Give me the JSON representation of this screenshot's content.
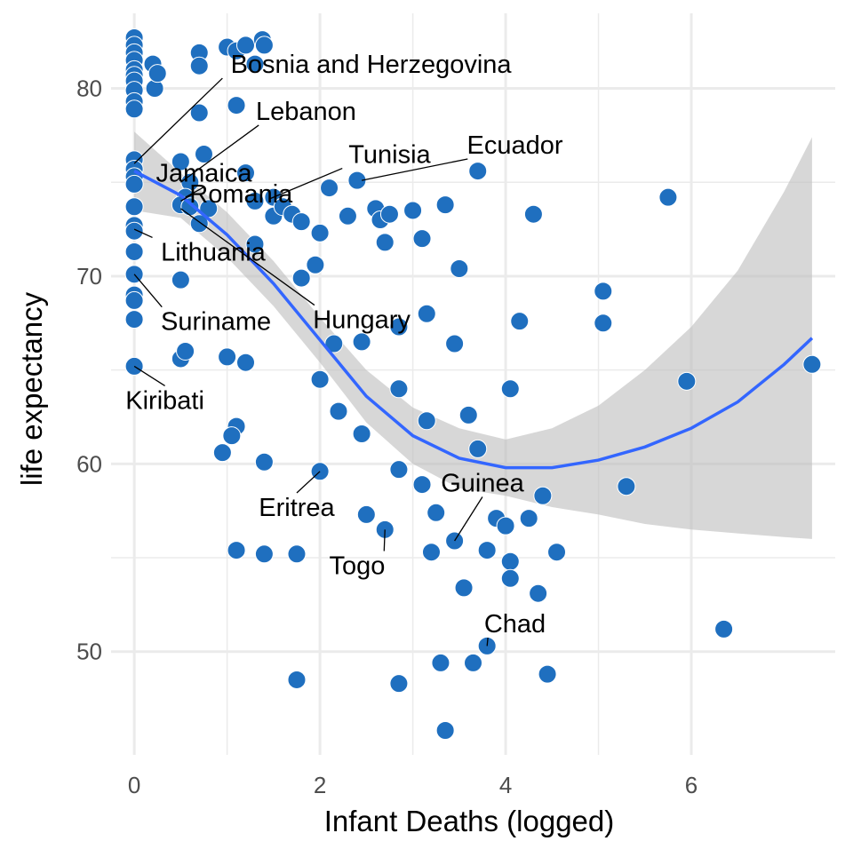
{
  "chart_data": {
    "type": "scatter",
    "title": "",
    "xlabel": "Infant Deaths (logged)",
    "ylabel": "life expectancy",
    "xlim": [
      -0.25,
      7.55
    ],
    "ylim": [
      44.5,
      84.0
    ],
    "x_ticks": [
      0,
      2,
      4,
      6
    ],
    "y_ticks": [
      50,
      60,
      70,
      80
    ],
    "grid": true,
    "legend": "none",
    "colors": {
      "point": "#1f6fbf",
      "point_stroke": "#ffffff",
      "smooth_line": "#3366ff",
      "ribbon": "#bdbdbd",
      "grid": "#ebebeb"
    },
    "points": [
      {
        "x": 0,
        "y": 82.7
      },
      {
        "x": 0,
        "y": 82.3
      },
      {
        "x": 0,
        "y": 81.9
      },
      {
        "x": 0,
        "y": 81.5
      },
      {
        "x": 0,
        "y": 81.0
      },
      {
        "x": 0,
        "y": 80.7
      },
      {
        "x": 0,
        "y": 80.4
      },
      {
        "x": 0,
        "y": 79.9
      },
      {
        "x": 0,
        "y": 79.3
      },
      {
        "x": 0,
        "y": 78.9
      },
      {
        "x": 0,
        "y": 76.2
      },
      {
        "x": 0,
        "y": 75.7
      },
      {
        "x": 0,
        "y": 75.3
      },
      {
        "x": 0,
        "y": 74.9
      },
      {
        "x": 0,
        "y": 73.7
      },
      {
        "x": 0,
        "y": 72.7
      },
      {
        "x": 0,
        "y": 72.4
      },
      {
        "x": 0,
        "y": 71.3
      },
      {
        "x": 0,
        "y": 70.1
      },
      {
        "x": 0,
        "y": 69.0
      },
      {
        "x": 0,
        "y": 68.7
      },
      {
        "x": 0,
        "y": 67.7
      },
      {
        "x": 0,
        "y": 65.2
      },
      {
        "x": 0.2,
        "y": 81.3
      },
      {
        "x": 0.22,
        "y": 80.0
      },
      {
        "x": 0.25,
        "y": 80.8
      },
      {
        "x": 0.7,
        "y": 81.9
      },
      {
        "x": 0.7,
        "y": 81.2
      },
      {
        "x": 0.7,
        "y": 78.7
      },
      {
        "x": 1.0,
        "y": 82.2
      },
      {
        "x": 1.1,
        "y": 82.0
      },
      {
        "x": 1.2,
        "y": 82.3
      },
      {
        "x": 1.3,
        "y": 81.3
      },
      {
        "x": 1.38,
        "y": 82.6
      },
      {
        "x": 1.4,
        "y": 82.3
      },
      {
        "x": 1.1,
        "y": 79.1
      },
      {
        "x": 0.75,
        "y": 76.5
      },
      {
        "x": 0.5,
        "y": 76.1
      },
      {
        "x": 0.6,
        "y": 75.0
      },
      {
        "x": 0.55,
        "y": 74.2
      },
      {
        "x": 0.5,
        "y": 73.8
      },
      {
        "x": 0.6,
        "y": 73.7
      },
      {
        "x": 0.8,
        "y": 73.6
      },
      {
        "x": 0.7,
        "y": 72.8
      },
      {
        "x": 1.2,
        "y": 75.5
      },
      {
        "x": 1.3,
        "y": 74.0
      },
      {
        "x": 1.5,
        "y": 74.2
      },
      {
        "x": 1.5,
        "y": 73.2
      },
      {
        "x": 1.6,
        "y": 73.7
      },
      {
        "x": 1.7,
        "y": 73.3
      },
      {
        "x": 1.8,
        "y": 72.9
      },
      {
        "x": 1.3,
        "y": 71.7
      },
      {
        "x": 2.0,
        "y": 72.3
      },
      {
        "x": 2.1,
        "y": 74.7
      },
      {
        "x": 2.4,
        "y": 75.1
      },
      {
        "x": 2.3,
        "y": 73.2
      },
      {
        "x": 2.6,
        "y": 73.6
      },
      {
        "x": 2.65,
        "y": 73.0
      },
      {
        "x": 2.75,
        "y": 73.3
      },
      {
        "x": 2.7,
        "y": 71.8
      },
      {
        "x": 3.0,
        "y": 73.5
      },
      {
        "x": 3.35,
        "y": 73.8
      },
      {
        "x": 3.1,
        "y": 72.0
      },
      {
        "x": 3.5,
        "y": 70.4
      },
      {
        "x": 3.7,
        "y": 75.6
      },
      {
        "x": 4.3,
        "y": 73.3
      },
      {
        "x": 1.8,
        "y": 69.9
      },
      {
        "x": 1.95,
        "y": 70.6
      },
      {
        "x": 0.5,
        "y": 69.8
      },
      {
        "x": 2.15,
        "y": 66.4
      },
      {
        "x": 2.45,
        "y": 66.5
      },
      {
        "x": 2.85,
        "y": 67.3
      },
      {
        "x": 3.15,
        "y": 68.0
      },
      {
        "x": 3.45,
        "y": 66.4
      },
      {
        "x": 4.15,
        "y": 67.6
      },
      {
        "x": 0.5,
        "y": 65.6
      },
      {
        "x": 0.55,
        "y": 66.0
      },
      {
        "x": 1.0,
        "y": 65.7
      },
      {
        "x": 1.2,
        "y": 65.4
      },
      {
        "x": 2.0,
        "y": 64.5
      },
      {
        "x": 2.85,
        "y": 64.0
      },
      {
        "x": 2.2,
        "y": 62.8
      },
      {
        "x": 3.15,
        "y": 62.3
      },
      {
        "x": 3.6,
        "y": 62.6
      },
      {
        "x": 2.45,
        "y": 61.6
      },
      {
        "x": 3.7,
        "y": 60.8
      },
      {
        "x": 4.05,
        "y": 64.0
      },
      {
        "x": 1.1,
        "y": 62.0
      },
      {
        "x": 1.05,
        "y": 61.5
      },
      {
        "x": 0.95,
        "y": 60.6
      },
      {
        "x": 1.4,
        "y": 60.1
      },
      {
        "x": 2.0,
        "y": 59.6
      },
      {
        "x": 2.85,
        "y": 59.7
      },
      {
        "x": 3.1,
        "y": 58.9
      },
      {
        "x": 3.25,
        "y": 57.4
      },
      {
        "x": 2.5,
        "y": 57.3
      },
      {
        "x": 2.7,
        "y": 56.5
      },
      {
        "x": 3.45,
        "y": 55.9
      },
      {
        "x": 3.2,
        "y": 55.3
      },
      {
        "x": 3.8,
        "y": 55.4
      },
      {
        "x": 3.9,
        "y": 57.1
      },
      {
        "x": 4.0,
        "y": 56.7
      },
      {
        "x": 4.25,
        "y": 57.1
      },
      {
        "x": 4.4,
        "y": 58.3
      },
      {
        "x": 4.55,
        "y": 55.3
      },
      {
        "x": 4.05,
        "y": 54.8
      },
      {
        "x": 3.55,
        "y": 53.4
      },
      {
        "x": 4.05,
        "y": 53.9
      },
      {
        "x": 4.35,
        "y": 53.1
      },
      {
        "x": 1.1,
        "y": 55.4
      },
      {
        "x": 1.4,
        "y": 55.2
      },
      {
        "x": 1.75,
        "y": 55.2
      },
      {
        "x": 3.3,
        "y": 49.4
      },
      {
        "x": 3.65,
        "y": 49.4
      },
      {
        "x": 3.8,
        "y": 50.3
      },
      {
        "x": 4.45,
        "y": 48.8
      },
      {
        "x": 1.75,
        "y": 48.5
      },
      {
        "x": 2.85,
        "y": 48.3
      },
      {
        "x": 3.35,
        "y": 45.8
      },
      {
        "x": 5.05,
        "y": 69.2
      },
      {
        "x": 5.05,
        "y": 67.5
      },
      {
        "x": 5.75,
        "y": 74.2
      },
      {
        "x": 5.95,
        "y": 64.4
      },
      {
        "x": 5.3,
        "y": 58.8
      },
      {
        "x": 6.35,
        "y": 51.2
      },
      {
        "x": 7.3,
        "y": 65.3
      }
    ],
    "smooth": {
      "x": [
        0,
        0.5,
        1,
        1.5,
        2,
        2.5,
        3,
        3.5,
        4,
        4.5,
        5,
        5.5,
        6,
        6.5,
        7,
        7.3
      ],
      "y": [
        75.6,
        74.3,
        72.2,
        69.6,
        66.6,
        63.6,
        61.5,
        60.3,
        59.8,
        59.8,
        60.2,
        60.9,
        61.9,
        63.3,
        65.3,
        66.7
      ],
      "lower": [
        73.5,
        73.1,
        71.0,
        68.4,
        65.4,
        62.2,
        60.0,
        58.7,
        58.3,
        57.7,
        57.3,
        56.8,
        56.5,
        56.3,
        56.1,
        56.0
      ],
      "upper": [
        77.7,
        75.5,
        73.4,
        70.8,
        67.8,
        65.0,
        63.0,
        61.9,
        61.3,
        61.9,
        63.1,
        65.0,
        67.3,
        70.3,
        74.5,
        77.4
      ]
    },
    "labels": [
      {
        "text": "Bosnia and Herzegovina",
        "x": 0,
        "y": 76.0,
        "lx": 2.55,
        "ly": 81.3
      },
      {
        "text": "Lebanon",
        "x": 0.5,
        "y": 75.0,
        "lx": 1.85,
        "ly": 78.8
      },
      {
        "text": "Jamaica",
        "x": 0.55,
        "y": 74.2,
        "lx": 0.75,
        "ly": 75.5
      },
      {
        "text": "Romania",
        "x": 0.5,
        "y": 74.0,
        "lx": 1.15,
        "ly": 74.4
      },
      {
        "text": "Tunisia",
        "x": 1.45,
        "y": 74.1,
        "lx": 2.75,
        "ly": 76.5
      },
      {
        "text": "Ecuador",
        "x": 2.45,
        "y": 75.1,
        "lx": 4.1,
        "ly": 77.0
      },
      {
        "text": "Lithuania",
        "x": 0,
        "y": 72.5,
        "lx": 0.85,
        "ly": 71.3
      },
      {
        "text": "Hungary",
        "x": 0.5,
        "y": 73.6,
        "lx": 2.45,
        "ly": 67.7
      },
      {
        "text": "Suriname",
        "x": 0,
        "y": 70.1,
        "lx": 0.88,
        "ly": 67.6
      },
      {
        "text": "Kiribati",
        "x": 0,
        "y": 65.2,
        "lx": 0.33,
        "ly": 63.4
      },
      {
        "text": "Eritrea",
        "x": 2.0,
        "y": 59.6,
        "lx": 1.75,
        "ly": 57.7
      },
      {
        "text": "Togo",
        "x": 2.7,
        "y": 56.5,
        "lx": 2.4,
        "ly": 54.6
      },
      {
        "text": "Guinea",
        "x": 3.45,
        "y": 55.9,
        "lx": 3.75,
        "ly": 59.0
      },
      {
        "text": "Chad",
        "x": 3.8,
        "y": 50.3,
        "lx": 4.1,
        "ly": 51.5
      }
    ]
  }
}
